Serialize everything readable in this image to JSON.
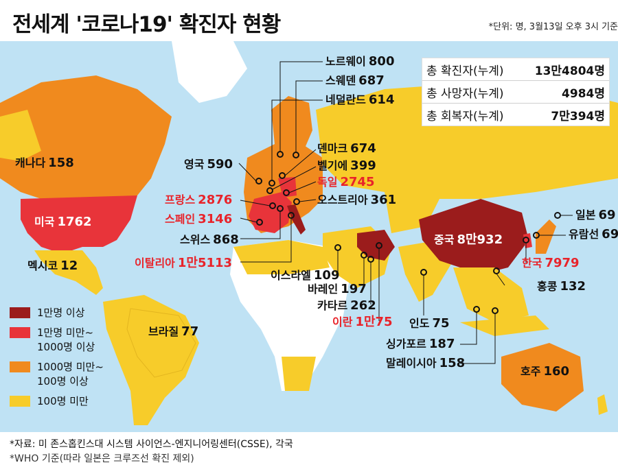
{
  "header": {
    "title": "전세계 '코로나19' 확진자 현황",
    "unit_note": "*단위: 명, 3월13일 오후 3시 기준"
  },
  "stats": [
    {
      "label": "총 확진자(누계)",
      "value": "13만4804명"
    },
    {
      "label": "총 사망자(누계)",
      "value": "4984명"
    },
    {
      "label": "총 회복자(누계)",
      "value": "7만394명"
    }
  ],
  "countries": {
    "norway": {
      "name": "노르웨이",
      "value": "800"
    },
    "sweden": {
      "name": "스웨덴",
      "value": "687"
    },
    "netherlands": {
      "name": "네덜란드",
      "value": "614"
    },
    "denmark": {
      "name": "덴마크",
      "value": "674"
    },
    "belgium": {
      "name": "벨기에",
      "value": "399"
    },
    "germany": {
      "name": "독일",
      "value": "2745"
    },
    "austria": {
      "name": "오스트리아",
      "value": "361"
    },
    "uk": {
      "name": "영국",
      "value": "590"
    },
    "france": {
      "name": "프랑스",
      "value": "2876"
    },
    "spain": {
      "name": "스페인",
      "value": "3146"
    },
    "switzerland": {
      "name": "스위스",
      "value": "868"
    },
    "italy": {
      "name": "이탈리아",
      "value": "1만5113"
    },
    "canada": {
      "name": "캐나다",
      "value": "158"
    },
    "usa": {
      "name": "미국",
      "value": "1762"
    },
    "mexico": {
      "name": "멕시코",
      "value": "12"
    },
    "brazil": {
      "name": "브라질",
      "value": "77"
    },
    "israel": {
      "name": "이스라엘",
      "value": "109"
    },
    "bahrain": {
      "name": "바레인",
      "value": "197"
    },
    "qatar": {
      "name": "카타르",
      "value": "262"
    },
    "iran": {
      "name": "이란",
      "value": "1만75"
    },
    "india": {
      "name": "인도",
      "value": "75"
    },
    "singapore": {
      "name": "싱가포르",
      "value": "187"
    },
    "malaysia": {
      "name": "말레이시아",
      "value": "158"
    },
    "china": {
      "name": "중국",
      "value": "8만932"
    },
    "korea": {
      "name": "한국",
      "value": "7979"
    },
    "hongkong": {
      "name": "홍콩",
      "value": "132"
    },
    "japan": {
      "name": "일본",
      "value": "69"
    },
    "cruise": {
      "name": "유람선",
      "value": "69"
    },
    "australia": {
      "name": "호주",
      "value": "160"
    }
  },
  "legend": [
    {
      "label": "1만명 이상",
      "color": "#9b1c1c"
    },
    {
      "label": "1만명 미만~\n1000명 이상",
      "color": "#e8343a"
    },
    {
      "label": "1000명 미만~\n100명 이상",
      "color": "#f08a1e"
    },
    {
      "label": "100명 미만",
      "color": "#f7cc2a"
    }
  ],
  "colors": {
    "ocean": "#bfe2f4",
    "no_data": "#ffffff",
    "over_10000": "#9b1c1c",
    "over_1000": "#e8343a",
    "over_100": "#f08a1e",
    "under_100": "#f7cc2a"
  },
  "footer": {
    "source": "*자료: 미 존스홉킨스대 시스템 사이언스-엔지니어링센터(CSSE), 각국",
    "note": "*WHO 기준(따라 일본은 크루즈선 확진 제외)"
  }
}
